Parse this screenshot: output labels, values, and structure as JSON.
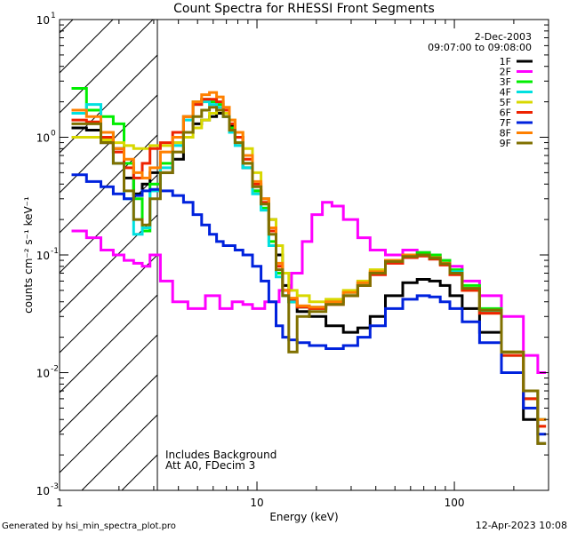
{
  "chart_data": {
    "type": "line",
    "title": "Count Spectra for RHESSI Front Segments",
    "xlabel": "Energy (keV)",
    "ylabel": "counts cm⁻² s⁻¹ keV⁻¹",
    "xscale": "log",
    "yscale": "log",
    "xlim": [
      1,
      300
    ],
    "ylim": [
      0.001,
      10
    ],
    "x_ticks": [
      {
        "value": 1,
        "label": "1"
      },
      {
        "value": 10,
        "label": "10"
      },
      {
        "value": 100,
        "label": "100"
      }
    ],
    "y_ticks": [
      {
        "value": 0.001,
        "base": "10",
        "exp": "-3"
      },
      {
        "value": 0.01,
        "base": "10",
        "exp": "-2"
      },
      {
        "value": 0.1,
        "base": "10",
        "exp": "-1"
      },
      {
        "value": 1,
        "base": "10",
        "exp": "0"
      },
      {
        "value": 10,
        "base": "10",
        "exp": "1"
      }
    ],
    "hatched_region": {
      "x_from": 1,
      "x_to": 3
    },
    "date_label": "2-Dec-2003",
    "time_label": "09:07:00 to 09:08:00",
    "annotations": [
      "Includes Background",
      "Att A0, FDecim 3"
    ],
    "footer_left": "Generated by hsi_min_spectra_plot.pro",
    "footer_right": "12-Apr-2023 10:08",
    "series": [
      {
        "name": "1F",
        "color": "#000000",
        "x": [
          1.25,
          1.5,
          1.75,
          2,
          2.25,
          2.5,
          2.75,
          3,
          3.5,
          4,
          4.5,
          5,
          5.5,
          6,
          6.5,
          7,
          7.5,
          8,
          9,
          10,
          11,
          12,
          13,
          14,
          15,
          17,
          20,
          25,
          30,
          35,
          40,
          50,
          60,
          70,
          80,
          90,
          100,
          120,
          150,
          200,
          250,
          280
        ],
        "y": [
          1.2,
          1.15,
          0.9,
          0.8,
          0.45,
          0.33,
          0.4,
          0.5,
          0.5,
          0.65,
          1.1,
          1.3,
          1.4,
          1.5,
          1.6,
          1.5,
          1.25,
          1.0,
          0.55,
          0.35,
          0.3,
          0.2,
          0.1,
          0.055,
          0.04,
          0.033,
          0.03,
          0.025,
          0.022,
          0.024,
          0.03,
          0.045,
          0.058,
          0.062,
          0.06,
          0.055,
          0.045,
          0.035,
          0.022,
          0.01,
          0.004,
          0.0025
        ]
      },
      {
        "name": "2F",
        "color": "#ff00ff",
        "x": [
          1.25,
          1.5,
          1.75,
          2,
          2.25,
          2.5,
          2.75,
          3,
          3.5,
          4,
          5,
          6,
          7,
          8,
          9,
          10,
          12,
          14,
          16,
          18,
          20,
          23,
          25,
          30,
          35,
          40,
          50,
          60,
          70,
          80,
          90,
          100,
          120,
          150,
          200,
          250,
          280
        ],
        "y": [
          0.16,
          0.14,
          0.11,
          0.1,
          0.09,
          0.085,
          0.08,
          0.1,
          0.06,
          0.04,
          0.035,
          0.045,
          0.035,
          0.04,
          0.038,
          0.035,
          0.04,
          0.05,
          0.07,
          0.13,
          0.22,
          0.28,
          0.26,
          0.2,
          0.14,
          0.11,
          0.1,
          0.11,
          0.105,
          0.1,
          0.09,
          0.08,
          0.06,
          0.045,
          0.03,
          0.014,
          0.01
        ]
      },
      {
        "name": "3F",
        "color": "#00ee00",
        "x": [
          1.25,
          1.5,
          1.75,
          2,
          2.25,
          2.5,
          2.75,
          3,
          3.5,
          4,
          4.5,
          5,
          5.5,
          6,
          6.5,
          7,
          7.5,
          8,
          9,
          10,
          11,
          12,
          13,
          14,
          15,
          17,
          20,
          25,
          30,
          35,
          40,
          50,
          60,
          70,
          80,
          90,
          100,
          120,
          150,
          200,
          250,
          280
        ],
        "y": [
          2.6,
          1.7,
          1.5,
          1.3,
          0.6,
          0.3,
          0.16,
          0.4,
          0.6,
          0.9,
          1.5,
          2.0,
          2.1,
          2.0,
          1.9,
          1.6,
          1.2,
          0.9,
          0.6,
          0.35,
          0.25,
          0.13,
          0.07,
          0.045,
          0.04,
          0.036,
          0.035,
          0.04,
          0.045,
          0.055,
          0.07,
          0.09,
          0.1,
          0.105,
          0.1,
          0.09,
          0.075,
          0.055,
          0.035,
          0.015,
          0.007,
          0.004
        ]
      },
      {
        "name": "4F",
        "color": "#00e0e0",
        "x": [
          1.25,
          1.5,
          1.75,
          2,
          2.25,
          2.5,
          2.75,
          3,
          3.5,
          4,
          4.5,
          5,
          5.5,
          6,
          6.5,
          7,
          7.5,
          8,
          9,
          10,
          11,
          12,
          13,
          14,
          15,
          17,
          20,
          25,
          30,
          35,
          40,
          50,
          60,
          70,
          80,
          90,
          100,
          120,
          150,
          200,
          250,
          280
        ],
        "y": [
          1.6,
          1.9,
          1.1,
          0.6,
          0.3,
          0.15,
          0.17,
          0.35,
          0.55,
          0.85,
          1.4,
          1.9,
          2.0,
          1.9,
          1.8,
          1.5,
          1.1,
          0.85,
          0.55,
          0.33,
          0.24,
          0.12,
          0.065,
          0.045,
          0.04,
          0.036,
          0.036,
          0.04,
          0.048,
          0.058,
          0.07,
          0.088,
          0.098,
          0.1,
          0.095,
          0.085,
          0.072,
          0.052,
          0.033,
          0.014,
          0.006,
          0.004
        ]
      },
      {
        "name": "5F",
        "color": "#d8d800",
        "x": [
          1.25,
          1.5,
          1.75,
          2,
          2.25,
          2.5,
          2.75,
          3,
          3.5,
          4,
          4.5,
          5,
          5.5,
          6,
          6.5,
          7,
          7.5,
          8,
          9,
          10,
          11,
          12,
          13,
          14,
          15,
          17,
          20,
          25,
          30,
          35,
          40,
          50,
          60,
          70,
          80,
          90,
          100,
          120,
          150,
          200,
          250,
          280
        ],
        "y": [
          1.0,
          1.0,
          0.95,
          0.9,
          0.85,
          0.8,
          0.8,
          0.85,
          0.85,
          0.9,
          1.0,
          1.2,
          1.4,
          1.6,
          1.7,
          1.6,
          1.4,
          1.1,
          0.8,
          0.5,
          0.3,
          0.2,
          0.12,
          0.07,
          0.05,
          0.045,
          0.04,
          0.042,
          0.05,
          0.06,
          0.075,
          0.09,
          0.1,
          0.1,
          0.095,
          0.085,
          0.07,
          0.05,
          0.032,
          0.014,
          0.006,
          0.0035
        ]
      },
      {
        "name": "6F",
        "color": "#ee2200",
        "x": [
          1.25,
          1.5,
          1.75,
          2,
          2.25,
          2.5,
          2.75,
          3,
          3.5,
          4,
          4.5,
          5,
          5.5,
          6,
          6.5,
          7,
          7.5,
          8,
          9,
          10,
          11,
          12,
          13,
          14,
          15,
          17,
          20,
          25,
          30,
          35,
          40,
          50,
          60,
          70,
          80,
          90,
          100,
          120,
          150,
          200,
          250,
          280
        ],
        "y": [
          1.4,
          1.35,
          1.0,
          0.75,
          0.55,
          0.45,
          0.6,
          0.8,
          0.9,
          1.1,
          1.5,
          1.9,
          2.1,
          2.1,
          2.0,
          1.7,
          1.3,
          1.0,
          0.65,
          0.4,
          0.28,
          0.16,
          0.08,
          0.05,
          0.042,
          0.036,
          0.035,
          0.038,
          0.045,
          0.055,
          0.068,
          0.085,
          0.095,
          0.098,
          0.092,
          0.082,
          0.068,
          0.05,
          0.032,
          0.014,
          0.006,
          0.0035
        ]
      },
      {
        "name": "7F",
        "color": "#0022dd",
        "x": [
          1.25,
          1.5,
          1.75,
          2,
          2.25,
          2.5,
          2.75,
          3,
          3.5,
          4,
          4.5,
          5,
          5.5,
          6,
          6.5,
          7,
          7.5,
          8,
          9,
          10,
          11,
          12,
          13,
          14,
          15,
          17,
          20,
          25,
          30,
          35,
          40,
          50,
          60,
          70,
          80,
          90,
          100,
          120,
          150,
          200,
          250,
          280
        ],
        "y": [
          0.48,
          0.42,
          0.38,
          0.33,
          0.3,
          0.32,
          0.35,
          0.36,
          0.35,
          0.32,
          0.28,
          0.22,
          0.18,
          0.15,
          0.13,
          0.12,
          0.12,
          0.11,
          0.1,
          0.08,
          0.06,
          0.04,
          0.025,
          0.02,
          0.019,
          0.018,
          0.017,
          0.016,
          0.017,
          0.02,
          0.025,
          0.035,
          0.042,
          0.045,
          0.044,
          0.04,
          0.035,
          0.027,
          0.018,
          0.01,
          0.005,
          0.003
        ]
      },
      {
        "name": "8F",
        "color": "#ff8000",
        "x": [
          1.25,
          1.5,
          1.75,
          2,
          2.25,
          2.5,
          2.75,
          3,
          3.5,
          4,
          4.5,
          5,
          5.5,
          6,
          6.5,
          7,
          7.5,
          8,
          9,
          10,
          11,
          12,
          13,
          14,
          15,
          17,
          20,
          25,
          30,
          35,
          40,
          50,
          60,
          70,
          80,
          90,
          100,
          120,
          150,
          200,
          250,
          280
        ],
        "y": [
          1.7,
          1.5,
          1.1,
          0.8,
          0.65,
          0.5,
          0.45,
          0.55,
          0.75,
          1.0,
          1.5,
          2.0,
          2.3,
          2.4,
          2.2,
          1.8,
          1.4,
          1.1,
          0.7,
          0.42,
          0.3,
          0.17,
          0.085,
          0.05,
          0.043,
          0.037,
          0.036,
          0.04,
          0.048,
          0.058,
          0.072,
          0.09,
          0.1,
          0.1,
          0.095,
          0.085,
          0.07,
          0.052,
          0.034,
          0.015,
          0.007,
          0.004
        ]
      },
      {
        "name": "9F",
        "color": "#807000",
        "x": [
          1.25,
          1.5,
          1.75,
          2,
          2.25,
          2.5,
          2.75,
          3,
          3.5,
          4,
          4.5,
          5,
          5.5,
          6,
          6.5,
          7,
          7.5,
          8,
          9,
          10,
          11,
          12,
          13,
          14,
          15,
          17,
          20,
          25,
          30,
          35,
          40,
          50,
          60,
          70,
          80,
          90,
          100,
          120,
          150,
          200,
          250,
          280
        ],
        "y": [
          1.3,
          1.3,
          0.9,
          0.6,
          0.35,
          0.2,
          0.18,
          0.3,
          0.5,
          0.75,
          1.1,
          1.5,
          1.7,
          1.8,
          1.7,
          1.5,
          1.15,
          0.9,
          0.6,
          0.38,
          0.27,
          0.15,
          0.075,
          0.045,
          0.015,
          0.03,
          0.033,
          0.038,
          0.045,
          0.055,
          0.07,
          0.088,
          0.097,
          0.1,
          0.094,
          0.084,
          0.07,
          0.052,
          0.034,
          0.015,
          0.007,
          0.0025
        ]
      }
    ]
  }
}
